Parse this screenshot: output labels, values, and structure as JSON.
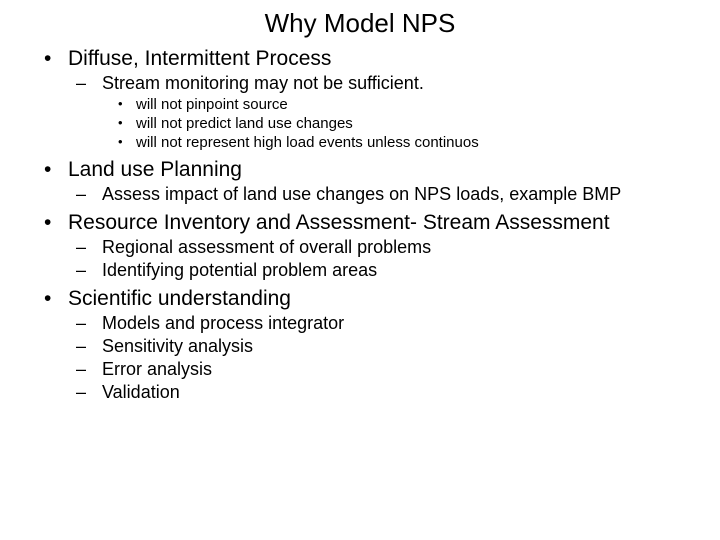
{
  "title": "Why Model NPS",
  "sections": [
    {
      "label": "Diffuse, Intermittent Process",
      "subs": [
        {
          "label": "Stream monitoring may not be sufficient.",
          "subsubs": [
            "will not pinpoint source",
            "will not predict land use changes",
            "will not represent high load events unless continuos"
          ]
        }
      ]
    },
    {
      "label": "Land use Planning",
      "subs": [
        {
          "label": "Assess impact of land use changes on NPS loads, example BMP",
          "subsubs": []
        }
      ]
    },
    {
      "label": "Resource Inventory and Assessment- Stream Assessment",
      "subs": [
        {
          "label": "Regional assessment of overall problems",
          "subsubs": []
        },
        {
          "label": "Identifying potential problem areas",
          "subsubs": []
        }
      ]
    },
    {
      "label": "Scientific understanding",
      "subs": [
        {
          "label": "Models and process integrator",
          "subsubs": []
        },
        {
          "label": "Sensitivity analysis",
          "subsubs": []
        },
        {
          "label": "Error analysis",
          "subsubs": []
        },
        {
          "label": "Validation",
          "subsubs": []
        }
      ]
    }
  ],
  "colors": {
    "text": "#000000",
    "background": "#ffffff"
  },
  "fontsizes": {
    "title": 26,
    "l1": 21,
    "l2": 18,
    "l3": 15
  }
}
